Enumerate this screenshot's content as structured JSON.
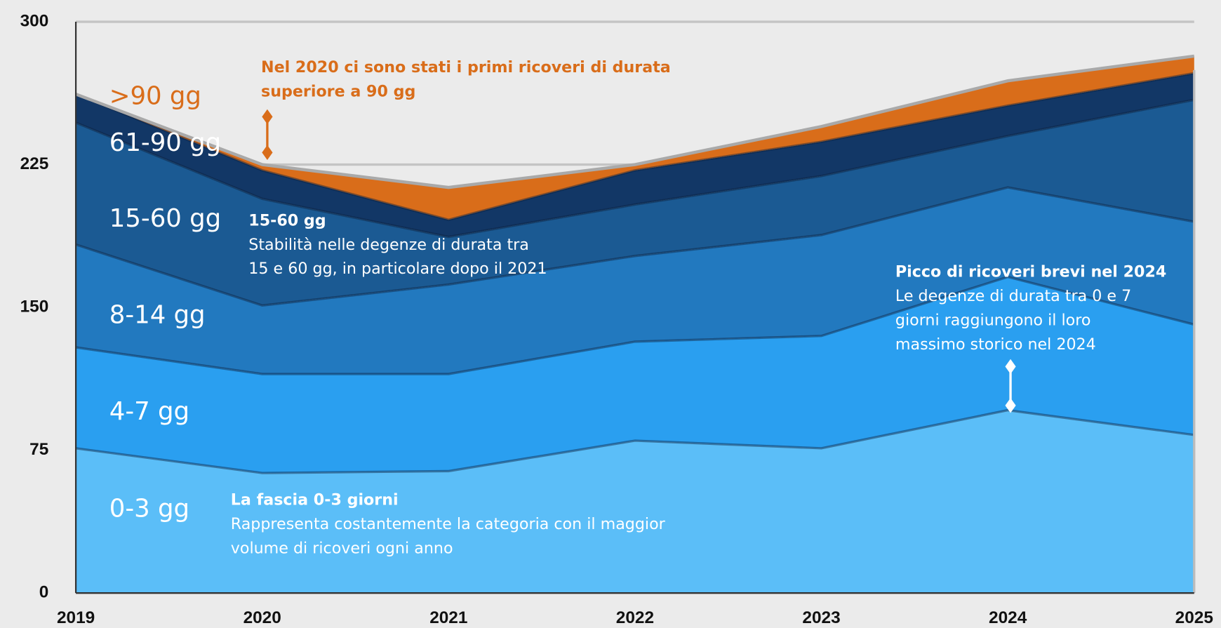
{
  "chart_data": {
    "type": "stacked_area",
    "x": [
      2019,
      2020,
      2021,
      2022,
      2023,
      2024,
      2025
    ],
    "xlim": [
      2019,
      2025
    ],
    "ylim": [
      0,
      300
    ],
    "yticks": [
      0,
      75,
      150,
      225,
      300
    ],
    "grid": true,
    "series": [
      {
        "name": "0-3 gg",
        "color": "#5bbef8",
        "values": [
          76,
          63,
          64,
          80,
          76,
          96,
          83
        ]
      },
      {
        "name": "4-7 gg",
        "color": "#2a9ff0",
        "values": [
          53,
          52,
          51,
          52,
          59,
          70,
          58
        ]
      },
      {
        "name": "8-14 gg",
        "color": "#2279bf",
        "values": [
          54,
          36,
          47,
          45,
          53,
          47,
          54
        ]
      },
      {
        "name": "15-60 gg",
        "color": "#1b5a93",
        "values": [
          64,
          56,
          25,
          27,
          31,
          27,
          64
        ]
      },
      {
        "name": "61-90 gg",
        "color": "#123766",
        "values": [
          15,
          15,
          9,
          18,
          18,
          16,
          14
        ]
      },
      {
        "name": ">90 gg",
        "color": "#d96d1a",
        "values": [
          0,
          3,
          17,
          3,
          8,
          13,
          9
        ]
      }
    ],
    "annotations": [
      {
        "color": "#d96d1a",
        "lines": [
          "Nel 2020 ci sono stati i primi ricoveri di durata",
          "superiore a 90 gg"
        ]
      },
      {
        "color": "#ffffff",
        "title": "15-60 gg",
        "lines": [
          "Stabilità nelle degenze di durata tra",
          "15 e 60 gg, in particolare dopo il 2021"
        ]
      },
      {
        "color": "#ffffff",
        "title": "Picco di ricoveri brevi nel 2024",
        "lines": [
          "Le degenze di durata tra 0 e 7",
          "giorni raggiungono il loro",
          "massimo storico nel 2024"
        ]
      },
      {
        "color": "#ffffff",
        "title": "La fascia 0-3 giorni",
        "lines": [
          "Rappresenta costantemente la categoria con il maggior",
          "volume di ricoveri ogni anno"
        ]
      }
    ]
  }
}
